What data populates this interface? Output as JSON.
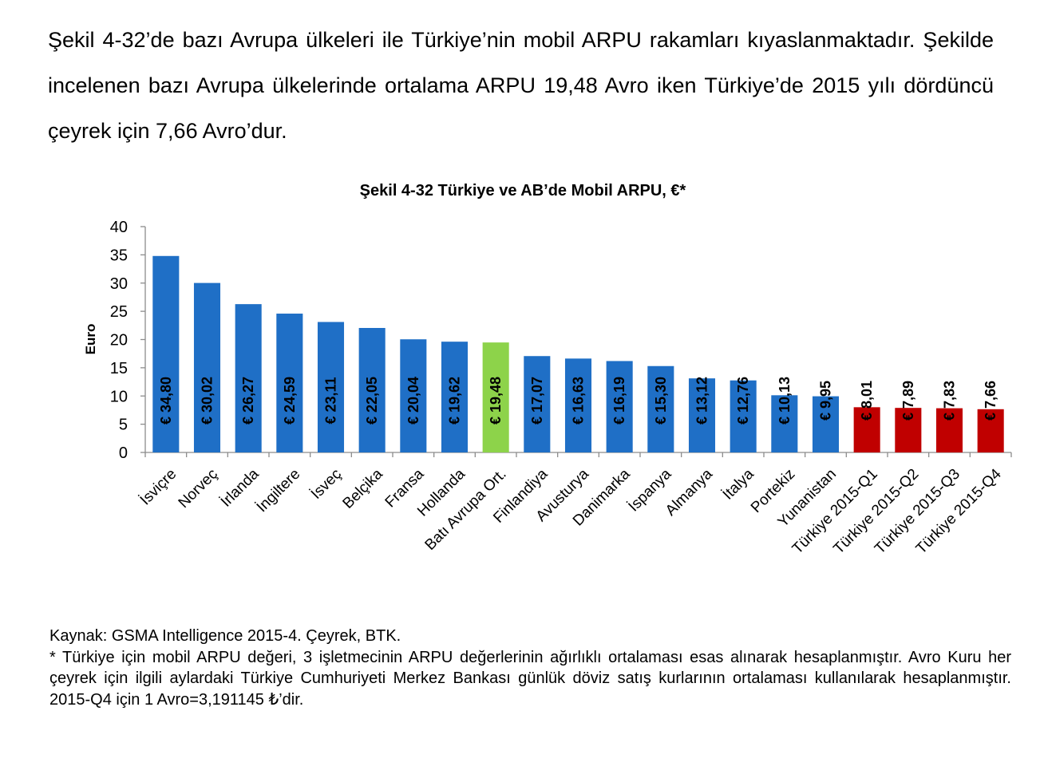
{
  "intro": {
    "text": "Şekil 4-32’de bazı Avrupa ülkeleri ile Türkiye’nin mobil ARPU rakamları kıyaslanmaktadır. Şekilde incelenen bazı Avrupa ülkelerinde ortalama ARPU 19,48 Avro iken Türkiye’de 2015 yılı dördüncü çeyrek için 7,66 Avro’dur."
  },
  "chart_data": {
    "type": "bar",
    "title": "Şekil 4-32 Türkiye ve AB’de Mobil ARPU, €*",
    "ylabel": "Euro",
    "xlabel": "",
    "ylim": [
      0,
      40
    ],
    "yticks": [
      "0",
      "5",
      "10",
      "15",
      "20",
      "25",
      "30",
      "35",
      "40"
    ],
    "grid": false,
    "categories": [
      "İsviçre",
      "Norveç",
      "İrlanda",
      "İngiltere",
      "İsveç",
      "Belçika",
      "Fransa",
      "Hollanda",
      "Batı Avrupa Ort.",
      "Finlandiya",
      "Avusturya",
      "Danimarka",
      "İspanya",
      "Almanya",
      "İtalya",
      "Portekiz",
      "Yunanistan",
      "Türkiye 2015-Q1",
      "Türkiye 2015-Q2",
      "Türkiye 2015-Q3",
      "Türkiye 2015-Q4"
    ],
    "values": [
      34.8,
      30.02,
      26.27,
      24.59,
      23.11,
      22.05,
      20.04,
      19.62,
      19.48,
      17.07,
      16.63,
      16.19,
      15.3,
      13.12,
      12.76,
      10.13,
      9.95,
      8.01,
      7.89,
      7.83,
      7.66
    ],
    "value_labels": [
      "€ 34,80",
      "€ 30,02",
      "€ 26,27",
      "€ 24,59",
      "€ 23,11",
      "€ 22,05",
      "€ 20,04",
      "€ 19,62",
      "€ 19,48",
      "€ 17,07",
      "€ 16,63",
      "€ 16,19",
      "€ 15,30",
      "€ 13,12",
      "€ 12,76",
      "€ 10,13",
      "€ 9,95",
      "€ 8,01",
      "€ 7,89",
      "€ 7,83",
      "€ 7,66"
    ],
    "colors": {
      "default": "#1f6fc6",
      "average": "#8dd34a",
      "turkey": "#c00000"
    },
    "bar_groups": [
      "default",
      "default",
      "default",
      "default",
      "default",
      "default",
      "default",
      "default",
      "average",
      "default",
      "default",
      "default",
      "default",
      "default",
      "default",
      "default",
      "default",
      "turkey",
      "turkey",
      "turkey",
      "turkey"
    ]
  },
  "notes": {
    "source": "Kaynak: GSMA Intelligence 2015-4. Çeyrek, BTK.",
    "footnote": "* Türkiye için mobil ARPU değeri, 3 işletmecinin ARPU değerlerinin ağırlıklı ortalaması esas alınarak hesaplanmıştır. Avro Kuru her çeyrek için ilgili aylardaki Türkiye Cumhuriyeti Merkez Bankası günlük döviz satış kurlarının ortalaması kullanılarak hesaplanmıştır. 2015-Q4 için 1 Avro=3,191145 ₺’dir."
  }
}
